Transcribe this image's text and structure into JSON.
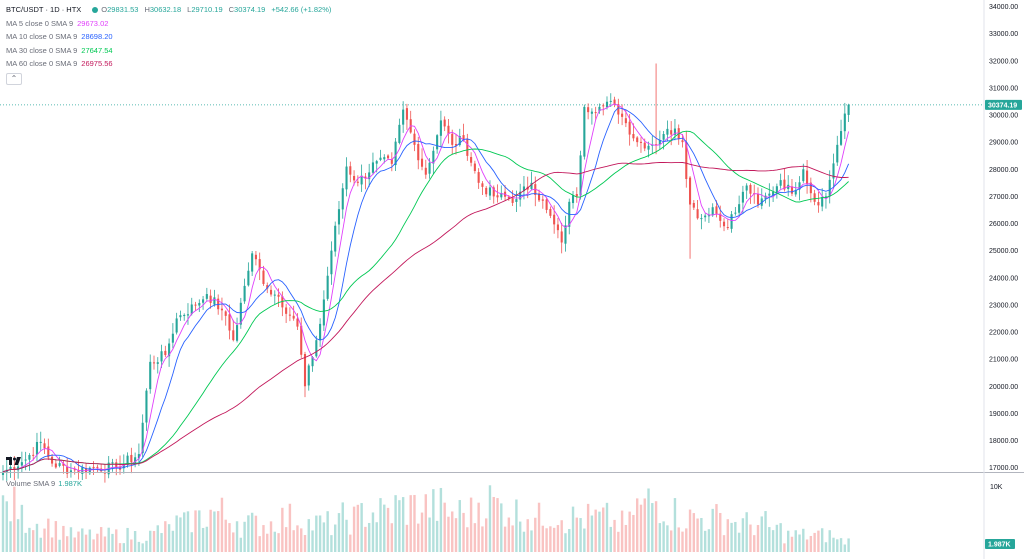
{
  "colors": {
    "up": "#26a69a",
    "down": "#ef5350",
    "ma5": "#e040fb",
    "ma10": "#2962ff",
    "ma30": "#00c853",
    "ma60": "#c2185b",
    "price_line": "#26a69a"
  },
  "legend": {
    "symbol": "BTC/USDT · 1D · HTX",
    "ohlc": [
      {
        "k": "O",
        "v": "29831.53"
      },
      {
        "k": "H",
        "v": "30632.18"
      },
      {
        "k": "L",
        "v": "29710.19"
      },
      {
        "k": "C",
        "v": "30374.19"
      },
      {
        "k": "",
        "v": "+542.66 (+1.82%)"
      }
    ],
    "indicators": [
      {
        "label": "MA 5 close 0 SMA 9",
        "value": "29673.02",
        "color": "#e040fb"
      },
      {
        "label": "MA 10 close 0 SMA 9",
        "value": "28698.20",
        "color": "#2962ff"
      },
      {
        "label": "MA 30 close 0 SMA 9",
        "value": "27647.54",
        "color": "#00c853"
      },
      {
        "label": "MA 60 close 0 SMA 9",
        "value": "26975.56",
        "color": "#c2185b"
      }
    ],
    "collapse_icon": "chevron-up-icon"
  },
  "volume_legend": {
    "label": "Volume SMA 9",
    "value": "1.987K"
  },
  "chart_data": {
    "type": "candlestick",
    "price_axis": {
      "ticks": [
        "34000.00",
        "33000.00",
        "32000.00",
        "31000.00",
        "30000.00",
        "29000.00",
        "28000.00",
        "27000.00",
        "26000.00",
        "25000.00",
        "24000.00",
        "23000.00",
        "22000.00",
        "21000.00",
        "20000.00",
        "19000.00",
        "18000.00",
        "17000.00"
      ],
      "range": [
        16900,
        34100
      ],
      "last_price_label": "30374.19",
      "last_price": 30374.19
    },
    "volume_axis": {
      "ticks": [
        "10K"
      ],
      "last_value_label": "1.987K"
    },
    "grid": false,
    "close_anchors": [
      [
        0,
        16850
      ],
      [
        6,
        17300
      ],
      [
        10,
        17950
      ],
      [
        13,
        17150
      ],
      [
        18,
        16900
      ],
      [
        25,
        17000
      ],
      [
        30,
        17000
      ],
      [
        36,
        17500
      ],
      [
        39,
        20900
      ],
      [
        43,
        21150
      ],
      [
        46,
        22500
      ],
      [
        51,
        23000
      ],
      [
        54,
        23400
      ],
      [
        58,
        22800
      ],
      [
        61,
        21700
      ],
      [
        64,
        23700
      ],
      [
        66,
        24900
      ],
      [
        70,
        23600
      ],
      [
        73,
        23300
      ],
      [
        78,
        22200
      ],
      [
        80,
        20000
      ],
      [
        84,
        22300
      ],
      [
        87,
        25000
      ],
      [
        91,
        28100
      ],
      [
        94,
        27500
      ],
      [
        99,
        28300
      ],
      [
        103,
        28200
      ],
      [
        106,
        30200
      ],
      [
        109,
        28900
      ],
      [
        112,
        27800
      ],
      [
        116,
        29800
      ],
      [
        119,
        28900
      ],
      [
        122,
        29100
      ],
      [
        126,
        27500
      ],
      [
        130,
        27000
      ],
      [
        136,
        26900
      ],
      [
        140,
        27500
      ],
      [
        144,
        26500
      ],
      [
        148,
        25300
      ],
      [
        150,
        26800
      ],
      [
        152,
        27000
      ],
      [
        154,
        30300
      ],
      [
        158,
        30300
      ],
      [
        162,
        30400
      ],
      [
        165,
        29700
      ],
      [
        168,
        29000
      ],
      [
        172,
        28900
      ],
      [
        175,
        29300
      ],
      [
        178,
        29500
      ],
      [
        180,
        29000
      ],
      [
        182,
        26700
      ],
      [
        185,
        26200
      ],
      [
        188,
        26600
      ],
      [
        191,
        25900
      ],
      [
        194,
        26400
      ],
      [
        197,
        27400
      ],
      [
        200,
        26700
      ],
      [
        203,
        27100
      ],
      [
        206,
        27600
      ],
      [
        209,
        27100
      ],
      [
        212,
        28000
      ],
      [
        215,
        26800
      ],
      [
        218,
        27000
      ],
      [
        221,
        28900
      ],
      [
        224,
        30374
      ]
    ],
    "volume_profile": [
      8,
      6,
      5,
      4,
      3,
      3,
      3,
      3,
      3,
      4,
      5,
      6,
      7,
      6,
      5,
      5,
      6,
      6,
      5,
      5,
      6,
      7,
      7,
      8,
      8,
      8,
      7,
      7,
      9,
      8,
      7,
      6,
      7,
      6,
      6,
      6,
      5,
      8,
      9,
      7,
      6,
      6,
      6,
      5,
      5,
      4,
      3,
      3,
      3,
      2
    ],
    "moving_averages": [
      {
        "name": "MA 5",
        "period": 5,
        "color": "#e040fb"
      },
      {
        "name": "MA 10",
        "period": 10,
        "color": "#2962ff"
      },
      {
        "name": "MA 30",
        "period": 30,
        "color": "#00c853"
      },
      {
        "name": "MA 60",
        "period": 60,
        "color": "#c2185b"
      }
    ]
  }
}
